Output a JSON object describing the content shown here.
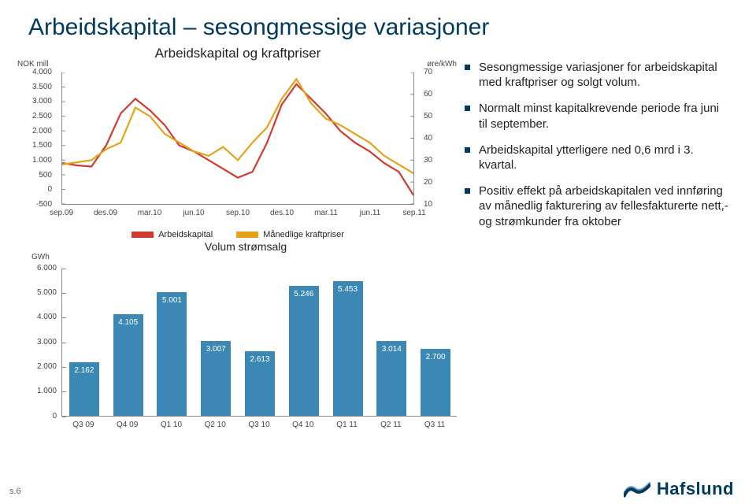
{
  "title": "Arbeidskapital – sesongmessige variasjoner",
  "line_chart": {
    "subtitle": "Arbeidskapital og kraftpriser",
    "y_left_label": "NOK mill",
    "y_right_label": "øre/kWh",
    "y_left_ticks": [
      "4.000",
      "3.500",
      "3.000",
      "2.500",
      "2.000",
      "1.500",
      "1.000",
      "500",
      "0",
      "-500"
    ],
    "y_left_min": -500,
    "y_left_max": 4000,
    "y_right_ticks": [
      "70",
      "60",
      "50",
      "40",
      "30",
      "20",
      "10"
    ],
    "y_right_min": 10,
    "y_right_max": 70,
    "x_labels": [
      "sep.09",
      "des.09",
      "mar.10",
      "jun.10",
      "sep.10",
      "des.10",
      "mar.11",
      "jun.11",
      "sep.11"
    ],
    "x_positions_24": [
      0,
      3,
      6,
      9,
      12,
      15,
      18,
      21,
      24
    ],
    "series_a": {
      "name": "Arbeidskapital",
      "color": "#cf3b2e",
      "width": 2.2,
      "points": [
        [
          0,
          900
        ],
        [
          1,
          820
        ],
        [
          2,
          780
        ],
        [
          3,
          1500
        ],
        [
          4,
          2600
        ],
        [
          5,
          3100
        ],
        [
          6,
          2700
        ],
        [
          7,
          2200
        ],
        [
          8,
          1500
        ],
        [
          9,
          1300
        ],
        [
          10,
          1000
        ],
        [
          11,
          700
        ],
        [
          12,
          400
        ],
        [
          13,
          600
        ],
        [
          14,
          1600
        ],
        [
          15,
          2900
        ],
        [
          16,
          3600
        ],
        [
          17,
          3100
        ],
        [
          18,
          2600
        ],
        [
          19,
          2000
        ],
        [
          20,
          1600
        ],
        [
          21,
          1300
        ],
        [
          22,
          900
        ],
        [
          23,
          600
        ],
        [
          24,
          -200
        ]
      ]
    },
    "series_b": {
      "name": "Månedlige kraftpriser",
      "color": "#e3a21a",
      "width": 2.2,
      "points": [
        [
          0,
          28
        ],
        [
          1,
          29
        ],
        [
          2,
          30
        ],
        [
          3,
          35
        ],
        [
          4,
          38
        ],
        [
          5,
          54
        ],
        [
          6,
          50
        ],
        [
          7,
          42
        ],
        [
          8,
          38
        ],
        [
          9,
          34
        ],
        [
          10,
          32
        ],
        [
          11,
          36
        ],
        [
          12,
          30
        ],
        [
          13,
          38
        ],
        [
          14,
          45
        ],
        [
          15,
          58
        ],
        [
          16,
          67
        ],
        [
          17,
          56
        ],
        [
          18,
          49
        ],
        [
          19,
          46
        ],
        [
          20,
          42
        ],
        [
          21,
          38
        ],
        [
          22,
          32
        ],
        [
          23,
          28
        ],
        [
          24,
          24
        ]
      ]
    },
    "legend": [
      {
        "label": "Arbeidskapital",
        "color": "#cf3b2e"
      },
      {
        "label": "Månedlige kraftpriser",
        "color": "#e3a21a"
      }
    ]
  },
  "bullets": [
    "Sesongmessige variasjoner for arbeidskapital med kraftpriser og solgt volum.",
    "Normalt minst kapitalkrevende periode fra juni til september.",
    "Arbeidskapital ytterligere ned 0,6 mrd i 3. kvartal.",
    "Positiv effekt på arbeidskapitalen ved innføring av månedlig fakturering av fellesfakturerte nett,- og strømkunder fra oktober"
  ],
  "bar_chart": {
    "subtitle": "Volum strømsalg",
    "y_label": "GWh",
    "y_ticks": [
      "6.000",
      "5.000",
      "4.000",
      "3.000",
      "2.000",
      "1.000",
      "0"
    ],
    "y_min": 0,
    "y_max": 6000,
    "categories": [
      "Q3 09",
      "Q4 09",
      "Q1 10",
      "Q2 10",
      "Q3 10",
      "Q4 10",
      "Q1 11",
      "Q2 11",
      "Q3 11"
    ],
    "values": [
      2162,
      4105,
      5001,
      3007,
      2613,
      5246,
      5453,
      3014,
      2700
    ],
    "value_labels": [
      "2.162",
      "4.105",
      "5.001",
      "3.007",
      "2.613",
      "5.246",
      "5.453",
      "3.014",
      "2.700"
    ],
    "bar_color": "#3a88b3",
    "label_inside_color": "#ffffff"
  },
  "footer": {
    "page": "s.6",
    "logo_text": "Hafslund"
  },
  "colors": {
    "title": "#003a5d",
    "axis": "#888888",
    "text": "#222222"
  }
}
